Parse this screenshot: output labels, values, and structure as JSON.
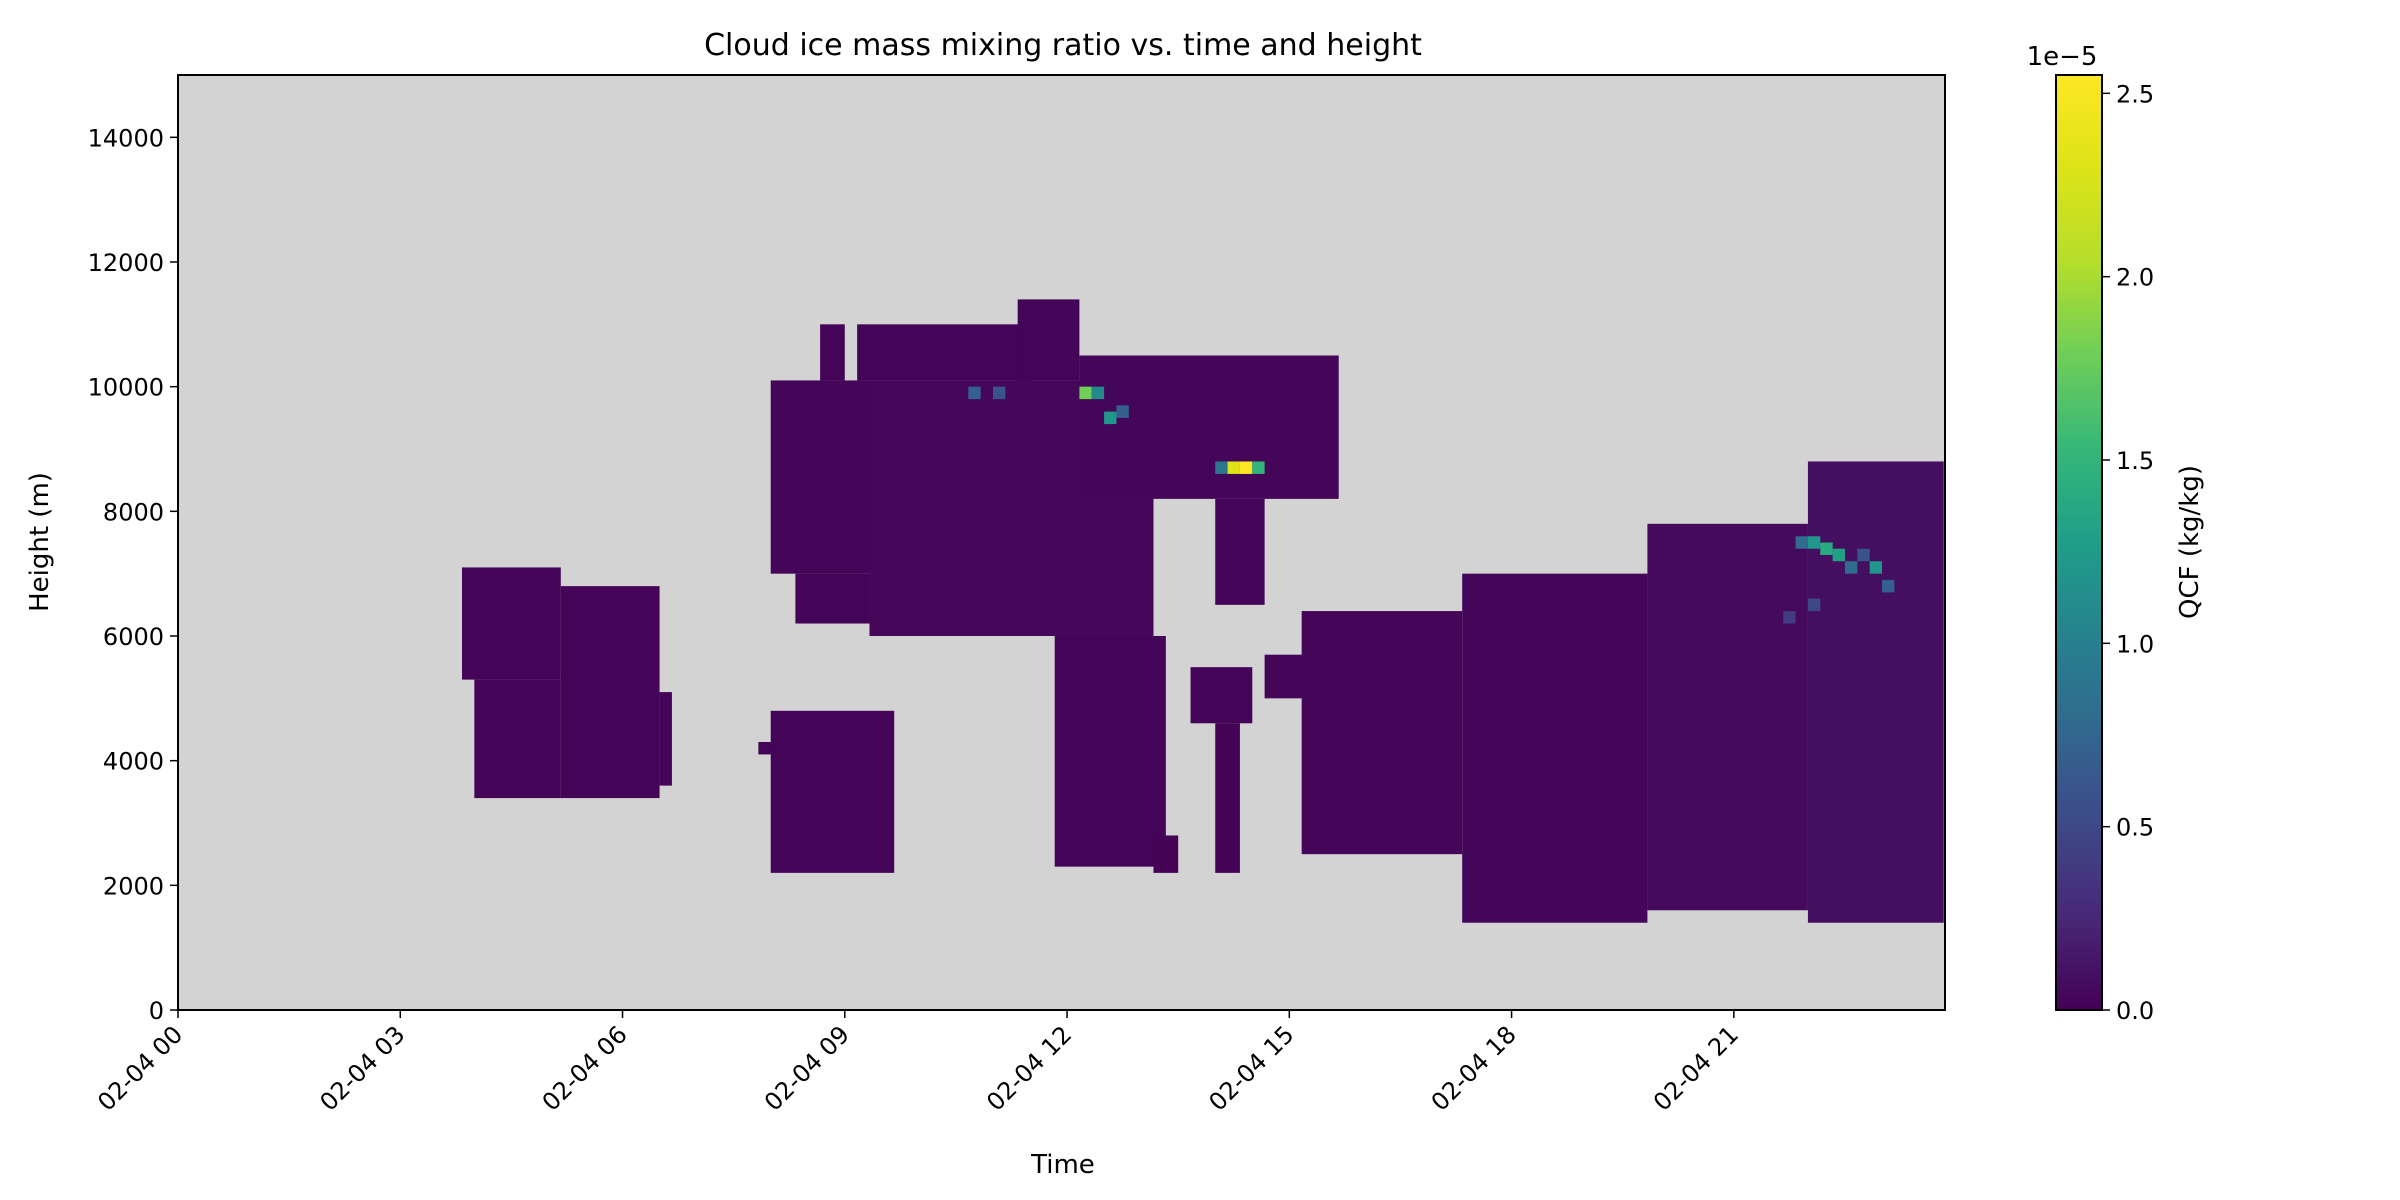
{
  "chart_data": {
    "type": "heatmap",
    "title": "Cloud ice mass mixing ratio vs. time and height",
    "xlabel": "Time",
    "ylabel": "Height (m)",
    "x_ticks": [
      "02-04 00",
      "02-04 03",
      "02-04 06",
      "02-04 09",
      "02-04 12",
      "02-04 15",
      "02-04 18",
      "02-04 21"
    ],
    "y_ticks": [
      "0",
      "2000",
      "4000",
      "6000",
      "8000",
      "10000",
      "12000",
      "14000"
    ],
    "x_range_hours": [
      0,
      23.85
    ],
    "ylim": [
      0,
      15000
    ],
    "colorbar": {
      "label": "QCF (kg/kg)",
      "ticks": [
        "0.0",
        "0.5",
        "1.0",
        "1.5",
        "2.0",
        "2.5"
      ],
      "offset_text": "1e−5",
      "range": [
        0,
        2.55e-05
      ],
      "colormap": "viridis"
    },
    "background_color": "#d3d3d3",
    "grid": false,
    "cell_width_hours": 0.1667,
    "cell_height_m": 200,
    "regions": [
      {
        "time": [
          "03:50",
          "05:10"
        ],
        "height": [
          5300,
          7100
        ],
        "qcf": 2e-07
      },
      {
        "time": [
          "04:00",
          "05:10"
        ],
        "height": [
          3400,
          5300
        ],
        "qcf": 2e-07
      },
      {
        "time": [
          "05:10",
          "06:30"
        ],
        "height": [
          3400,
          6800
        ],
        "qcf": 2e-07
      },
      {
        "time": [
          "06:30",
          "06:40"
        ],
        "height": [
          3600,
          5100
        ],
        "qcf": 2e-07
      },
      {
        "time": [
          "07:50",
          "08:10"
        ],
        "height": [
          4100,
          4300
        ],
        "qcf": 2e-07
      },
      {
        "time": [
          "08:00",
          "09:40"
        ],
        "height": [
          2200,
          4800
        ],
        "qcf": 2e-07
      },
      {
        "time": [
          "08:00",
          "10:10"
        ],
        "height": [
          7000,
          10100
        ],
        "qcf": 3e-07
      },
      {
        "time": [
          "08:20",
          "09:20"
        ],
        "height": [
          6200,
          7000
        ],
        "qcf": 2e-07
      },
      {
        "time": [
          "08:40",
          "09:00"
        ],
        "height": [
          10100,
          11000
        ],
        "qcf": 2e-07
      },
      {
        "time": [
          "09:10",
          "11:30"
        ],
        "height": [
          10100,
          11000
        ],
        "qcf": 2e-07
      },
      {
        "time": [
          "09:20",
          "13:10"
        ],
        "height": [
          6000,
          10100
        ],
        "qcf": 4e-07
      },
      {
        "time": [
          "11:20",
          "12:10"
        ],
        "height": [
          10100,
          11400
        ],
        "qcf": 2e-07
      },
      {
        "time": [
          "12:10",
          "15:40"
        ],
        "height": [
          8200,
          10500
        ],
        "qcf": 3e-07
      },
      {
        "time": [
          "11:50",
          "13:20"
        ],
        "height": [
          2300,
          6000
        ],
        "qcf": 2e-07
      },
      {
        "time": [
          "13:10",
          "13:30"
        ],
        "height": [
          2200,
          2800
        ],
        "qcf": 1e-07
      },
      {
        "time": [
          "13:40",
          "14:30"
        ],
        "height": [
          4600,
          5500
        ],
        "qcf": 2e-07
      },
      {
        "time": [
          "14:00",
          "14:20"
        ],
        "height": [
          2200,
          4600
        ],
        "qcf": 1e-07
      },
      {
        "time": [
          "14:00",
          "14:40"
        ],
        "height": [
          6500,
          8200
        ],
        "qcf": 2e-07
      },
      {
        "time": [
          "14:40",
          "15:40"
        ],
        "height": [
          5000,
          5700
        ],
        "qcf": 2e-07
      },
      {
        "time": [
          "15:10",
          "17:20"
        ],
        "height": [
          2500,
          6400
        ],
        "qcf": 3e-07
      },
      {
        "time": [
          "17:20",
          "19:50"
        ],
        "height": [
          1400,
          7000
        ],
        "qcf": 3e-07
      },
      {
        "time": [
          "19:50",
          "22:00"
        ],
        "height": [
          1600,
          7800
        ],
        "qcf": 6e-07
      },
      {
        "time": [
          "22:00",
          "23:50"
        ],
        "height": [
          1400,
          8800
        ],
        "qcf": 9e-07
      }
    ],
    "hotspots": [
      {
        "time": "10:40",
        "height": 9900,
        "qcf": 7e-06
      },
      {
        "time": "11:00",
        "height": 9900,
        "qcf": 6e-06
      },
      {
        "time": "12:10",
        "height": 9900,
        "qcf": 1.8e-05
      },
      {
        "time": "12:20",
        "height": 9900,
        "qcf": 1.1e-05
      },
      {
        "time": "12:30",
        "height": 9500,
        "qcf": 1.2e-05
      },
      {
        "time": "12:40",
        "height": 9600,
        "qcf": 7e-06
      },
      {
        "time": "14:00",
        "height": 8700,
        "qcf": 9e-06
      },
      {
        "time": "14:10",
        "height": 8700,
        "qcf": 2.3e-05
      },
      {
        "time": "14:20",
        "height": 8700,
        "qcf": 2.55e-05
      },
      {
        "time": "14:30",
        "height": 8700,
        "qcf": 1.5e-05
      },
      {
        "time": "21:50",
        "height": 7500,
        "qcf": 8e-06
      },
      {
        "time": "22:00",
        "height": 7500,
        "qcf": 1.2e-05
      },
      {
        "time": "22:10",
        "height": 7400,
        "qcf": 1.4e-05
      },
      {
        "time": "22:20",
        "height": 7300,
        "qcf": 1.3e-05
      },
      {
        "time": "22:30",
        "height": 7100,
        "qcf": 8e-06
      },
      {
        "time": "22:40",
        "height": 7300,
        "qcf": 6e-06
      },
      {
        "time": "22:50",
        "height": 7100,
        "qcf": 1.2e-05
      },
      {
        "time": "23:00",
        "height": 6800,
        "qcf": 7e-06
      },
      {
        "time": "22:00",
        "height": 6500,
        "qcf": 5e-06
      },
      {
        "time": "21:40",
        "height": 6300,
        "qcf": 4e-06
      }
    ]
  }
}
